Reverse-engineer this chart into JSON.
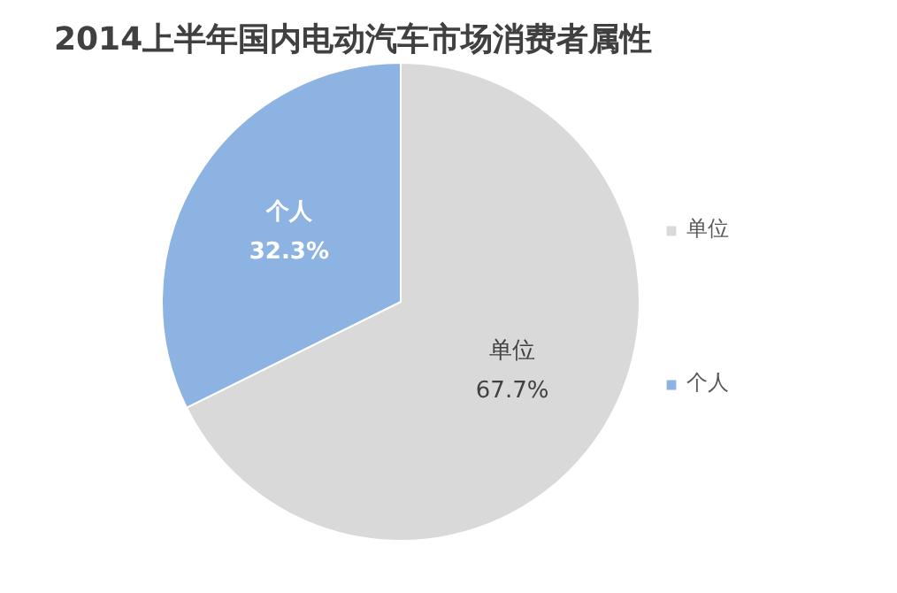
{
  "chart_data": {
    "type": "pie",
    "title": "2014上半年国内电动汽车市场消费者属性",
    "categories": [
      "单位",
      "个人"
    ],
    "values": [
      67.7,
      32.3
    ],
    "colors": [
      "#d9d9d9",
      "#8db3e2"
    ],
    "value_labels": [
      "67.7%",
      "32.3%"
    ],
    "legend": "right"
  }
}
